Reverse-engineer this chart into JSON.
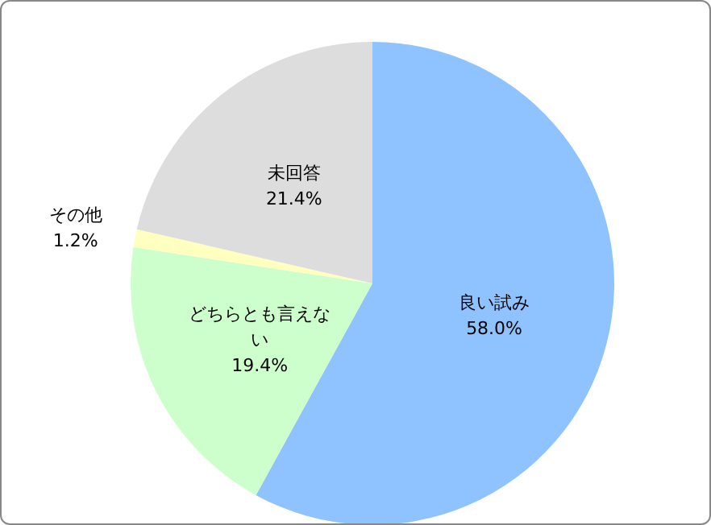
{
  "chart_data": {
    "type": "pie",
    "categories": [
      "良い試み",
      "どちらとも言えない",
      "その他",
      "未回答"
    ],
    "values": [
      58.0,
      19.4,
      1.2,
      21.4
    ],
    "value_labels": [
      "58.0%",
      "19.4%",
      "1.2%",
      "21.4%"
    ],
    "colors": [
      "#8fc3ff",
      "#ccffcc",
      "#ffffc0",
      "#dddddd"
    ]
  }
}
